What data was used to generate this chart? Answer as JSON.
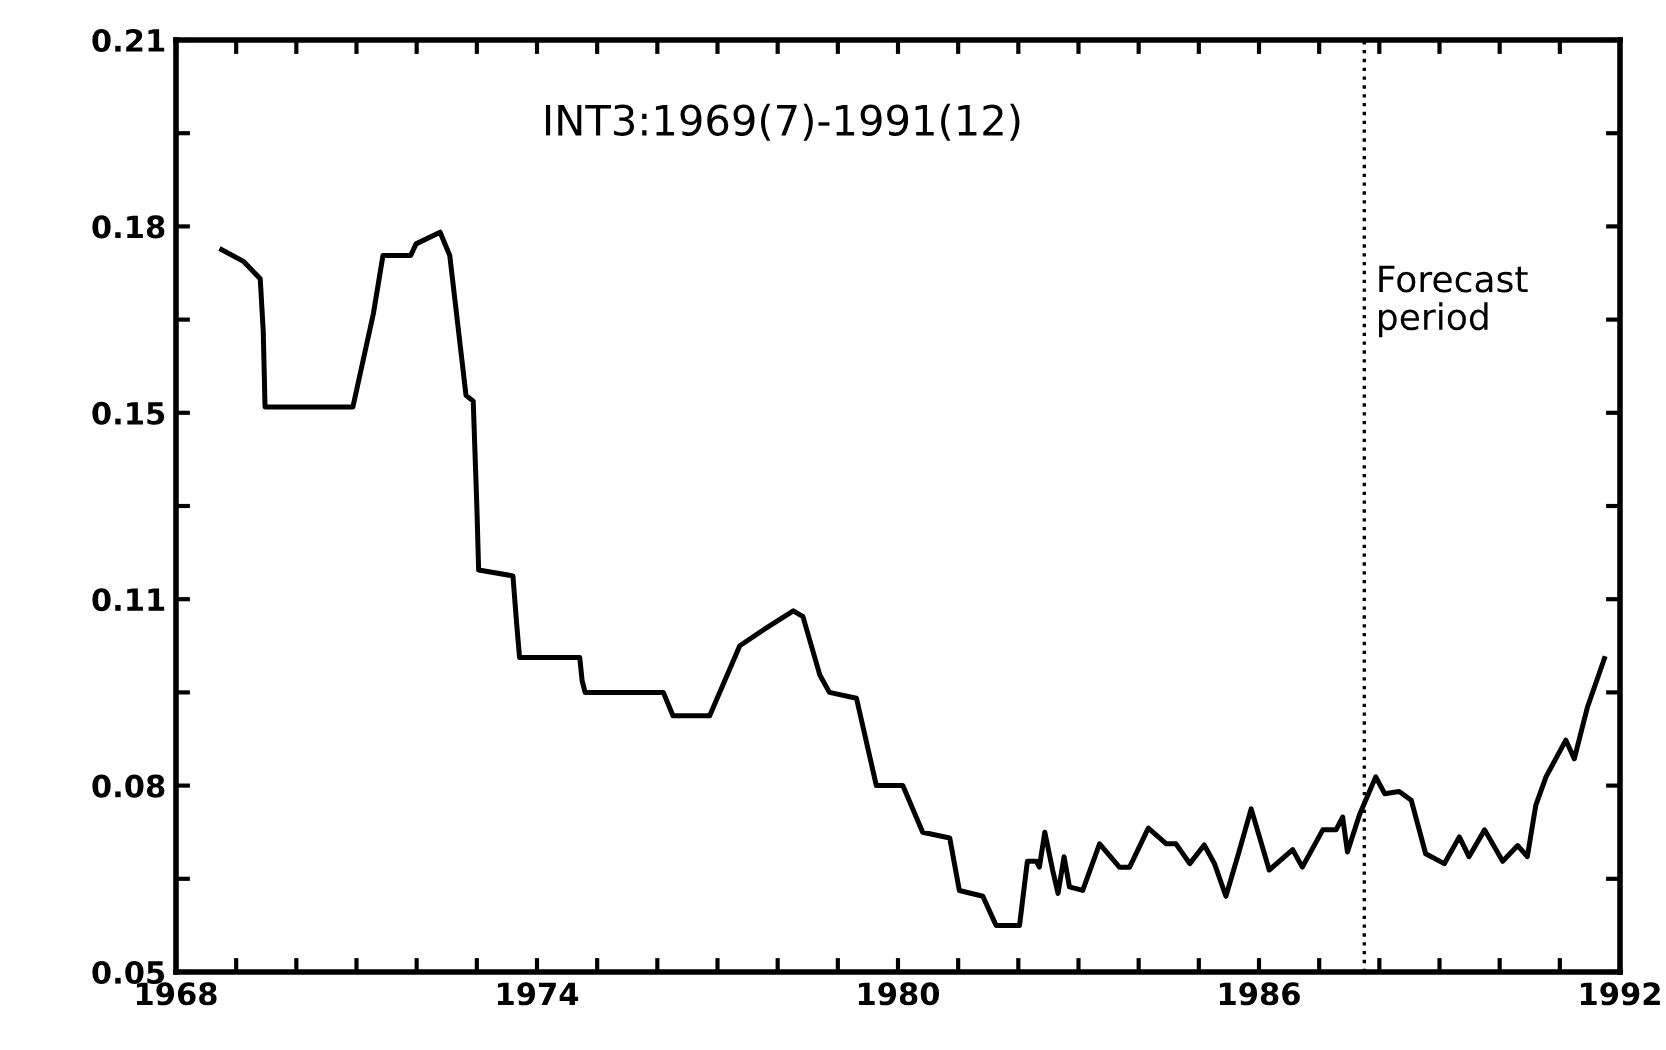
{
  "chart_data": {
    "type": "line",
    "annotations": [
      "INT3:1969(7)-1991(12)"
    ],
    "x": [
      1968.76,
      1969.12,
      1969.4,
      1969.45,
      1969.48,
      1970.94,
      1971.28,
      1971.44,
      1971.9,
      1971.99,
      1972.39,
      1972.55,
      1972.82,
      1972.94,
      1973.0,
      1973.03,
      1973.6,
      1973.66,
      1973.71,
      1974.71,
      1974.75,
      1974.8,
      1976.1,
      1976.26,
      1976.87,
      1977.37,
      1977.8,
      1978.26,
      1978.42,
      1978.7,
      1978.86,
      1979.31,
      1979.64,
      1980.08,
      1980.41,
      1980.86,
      1981.02,
      1981.41,
      1981.63,
      1982.02,
      1982.15,
      1982.3,
      1982.35,
      1982.44,
      1982.57,
      1982.66,
      1982.76,
      1982.85,
      1983.07,
      1983.35,
      1983.68,
      1983.85,
      1984.16,
      1984.46,
      1984.62,
      1984.85,
      1985.09,
      1985.26,
      1985.45,
      1985.65,
      1985.87,
      1986.17,
      1986.56,
      1986.72,
      1987.06,
      1987.28,
      1987.39,
      1987.47,
      1987.67,
      1987.94,
      1988.09,
      1988.33,
      1988.53,
      1988.77,
      1989.08,
      1989.33,
      1989.49,
      1989.75,
      1990.05,
      1990.3,
      1990.46,
      1990.6,
      1990.77,
      1991.1,
      1991.24,
      1991.46,
      1991.74
    ],
    "series": [
      {
        "color": "#000000",
        "values": [
          0.174,
          0.172,
          0.169,
          0.16,
          0.147,
          0.147,
          0.163,
          0.173,
          0.173,
          0.175,
          0.177,
          0.173,
          0.149,
          0.148,
          0.13,
          0.119,
          0.118,
          0.11,
          0.104,
          0.104,
          0.1,
          0.098,
          0.098,
          0.094,
          0.094,
          0.106,
          0.109,
          0.112,
          0.111,
          0.101,
          0.098,
          0.097,
          0.082,
          0.082,
          0.074,
          0.073,
          0.064,
          0.063,
          0.058,
          0.058,
          0.069,
          0.069,
          0.068,
          0.074,
          0.0675,
          0.0635,
          0.0698,
          0.0646,
          0.064,
          0.072,
          0.068,
          0.068,
          0.0747,
          0.072,
          0.072,
          0.0686,
          0.0718,
          0.0686,
          0.063,
          0.07,
          0.078,
          0.0675,
          0.071,
          0.068,
          0.0744,
          0.0744,
          0.0766,
          0.0706,
          0.077,
          0.0835,
          0.0806,
          0.081,
          0.0795,
          0.0703,
          0.0686,
          0.0732,
          0.0698,
          0.0744,
          0.069,
          0.0717,
          0.0698,
          0.0786,
          0.0835,
          0.0898,
          0.0866,
          0.0955,
          0.1038
        ]
      }
    ],
    "xlim": [
      1968,
      1992
    ],
    "xticks": [
      1968,
      {
        "value": 1969,
        "label": null
      },
      {
        "value": 1970,
        "label": null
      },
      {
        "value": 1971,
        "label": null
      },
      {
        "value": 1972,
        "label": null
      },
      {
        "value": 1973,
        "label": null
      },
      1974,
      {
        "value": 1975,
        "label": null
      },
      {
        "value": 1976,
        "label": null
      },
      {
        "value": 1977,
        "label": null
      },
      {
        "value": 1978,
        "label": null
      },
      {
        "value": 1979,
        "label": null
      },
      1980,
      {
        "value": 1981,
        "label": null
      },
      {
        "value": 1982,
        "label": null
      },
      {
        "value": 1983,
        "label": null
      },
      {
        "value": 1984,
        "label": null
      },
      {
        "value": 1985,
        "label": null
      },
      1986,
      {
        "value": 1987,
        "label": null
      },
      {
        "value": 1988,
        "label": null
      },
      {
        "value": 1989,
        "label": null
      },
      {
        "value": 1990,
        "label": null
      },
      {
        "value": 1991,
        "label": null
      },
      1992
    ],
    "ylim": [
      0.05,
      0.21
    ],
    "yticks": [
      {
        "value": 0.05,
        "label": "0.05"
      },
      {
        "value": 0.066,
        "label": null
      },
      {
        "value": 0.082,
        "label": "0.08"
      },
      {
        "value": 0.098,
        "label": null
      },
      {
        "value": 0.114,
        "label": "0.11"
      },
      {
        "value": 0.13,
        "label": null
      },
      {
        "value": 0.146,
        "label": "0.15"
      },
      {
        "value": 0.162,
        "label": null
      },
      {
        "value": 0.178,
        "label": "0.18"
      },
      {
        "value": 0.194,
        "label": null
      },
      {
        "value": 0.21,
        "label": "0.21"
      }
    ],
    "ref_lines": [
      {
        "axis": "x",
        "value": 1987.75,
        "label": "Forecast\nperiod",
        "color": "#000000",
        "line_style": "dotted"
      }
    ],
    "grid": false,
    "legend": false,
    "line_style": "solid"
  }
}
